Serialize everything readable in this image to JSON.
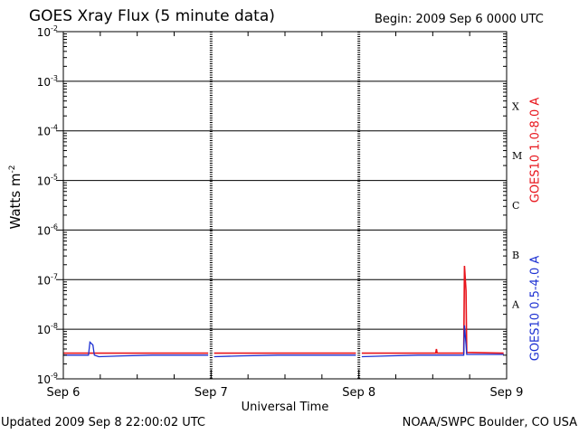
{
  "header": {
    "title": "GOES Xray Flux (5 minute data)",
    "begin": "Begin:  2009 Sep 6 0000 UTC"
  },
  "footer": {
    "updated": "Updated 2009 Sep  8 22:00:02 UTC",
    "credit": "NOAA/SWPC Boulder, CO USA"
  },
  "colors": {
    "long_channel": "#e8141b",
    "short_channel": "#1c30d2",
    "grid": "#000000"
  },
  "chart_data": {
    "type": "line",
    "title": "GOES Xray Flux (5 minute data)",
    "xlabel": "Universal Time",
    "ylabel": "Watts m-2",
    "y_scale": "log",
    "ylim": [
      1e-09,
      0.01
    ],
    "ytick_labels": [
      {
        "base": "10",
        "exp": "-2",
        "value": 0.01
      },
      {
        "base": "10",
        "exp": "-3",
        "value": 0.001
      },
      {
        "base": "10",
        "exp": "-4",
        "value": 0.0001
      },
      {
        "base": "10",
        "exp": "-5",
        "value": 1e-05
      },
      {
        "base": "10",
        "exp": "-6",
        "value": 1e-06
      },
      {
        "base": "10",
        "exp": "-7",
        "value": 1e-07
      },
      {
        "base": "10",
        "exp": "-8",
        "value": 1e-08
      },
      {
        "base": "10",
        "exp": "-9",
        "value": 1e-09
      }
    ],
    "xlim_days": [
      0,
      3
    ],
    "xtick_labels": [
      {
        "label": "Sep 6",
        "day": 0
      },
      {
        "label": "Sep 7",
        "day": 1
      },
      {
        "label": "Sep 8",
        "day": 2
      },
      {
        "label": "Sep 9",
        "day": 3
      }
    ],
    "flare_classes": [
      {
        "label": "X",
        "lower": 0.0001
      },
      {
        "label": "M",
        "lower": 1e-05
      },
      {
        "label": "C",
        "lower": 1e-06
      },
      {
        "label": "B",
        "lower": 1e-07
      },
      {
        "label": "A",
        "lower": 1e-08
      }
    ],
    "grid": true,
    "series": [
      {
        "name": "GOES10 1.0-8.0 A",
        "color": "#e8141b",
        "segments": [
          [
            [
              0.0,
              3.3e-09
            ],
            [
              0.98,
              3.3e-09
            ]
          ],
          [
            [
              1.02,
              3.3e-09
            ],
            [
              1.98,
              3.3e-09
            ]
          ],
          [
            [
              2.02,
              3.3e-09
            ],
            [
              2.52,
              3.3e-09
            ],
            [
              2.525,
              4e-09
            ],
            [
              2.53,
              3.3e-09
            ],
            [
              2.71,
              3.3e-09
            ],
            [
              2.715,
              1.9e-07
            ],
            [
              2.725,
              6e-08
            ],
            [
              2.73,
              3.4e-09
            ],
            [
              2.98,
              3.3e-09
            ]
          ]
        ]
      },
      {
        "name": "GOES10 0.5-4.0 A",
        "color": "#1c30d2",
        "segments": [
          [
            [
              0.0,
              3e-09
            ],
            [
              0.17,
              3e-09
            ],
            [
              0.18,
              5.5e-09
            ],
            [
              0.2,
              4.8e-09
            ],
            [
              0.21,
              3e-09
            ],
            [
              0.24,
              2.8e-09
            ],
            [
              0.4,
              2.9e-09
            ],
            [
              0.6,
              3e-09
            ],
            [
              0.98,
              3e-09
            ]
          ],
          [
            [
              1.02,
              2.8e-09
            ],
            [
              1.2,
              2.9e-09
            ],
            [
              1.45,
              3e-09
            ],
            [
              1.98,
              3e-09
            ]
          ],
          [
            [
              2.02,
              2.8e-09
            ],
            [
              2.2,
              2.9e-09
            ],
            [
              2.4,
              3e-09
            ],
            [
              2.71,
              3e-09
            ],
            [
              2.715,
              1.2e-08
            ],
            [
              2.725,
              5e-09
            ],
            [
              2.73,
              3.1e-09
            ],
            [
              2.98,
              3.1e-09
            ]
          ]
        ]
      }
    ],
    "legend_placement": "right, vertical"
  }
}
